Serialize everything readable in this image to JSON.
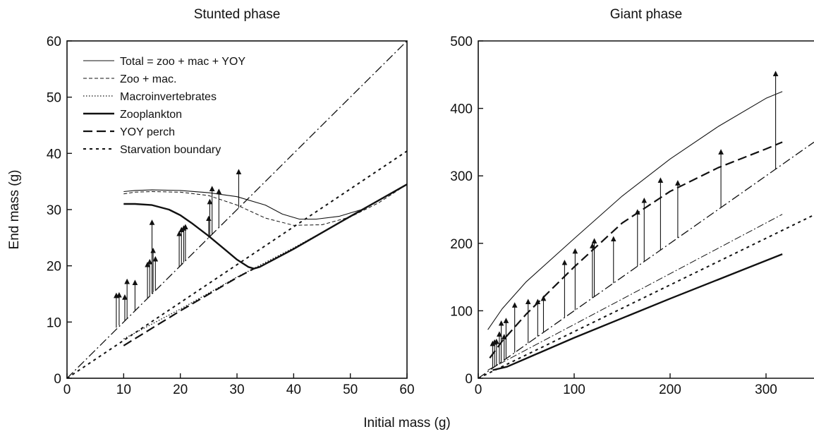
{
  "figure": {
    "shared_xlabel": "Initial mass (g)"
  },
  "chart_data": [
    {
      "type": "line",
      "title": "Stunted phase",
      "xlabel": "",
      "ylabel": "End mass (g)",
      "xlim": [
        0,
        60
      ],
      "ylim": [
        0,
        60
      ],
      "xticks": [
        0,
        10,
        20,
        30,
        40,
        50,
        60
      ],
      "yticks": [
        0,
        10,
        20,
        30,
        40,
        50,
        60
      ],
      "legend_position": "top-left",
      "series": [
        {
          "name": "Total = zoo + mac + YOY",
          "style": "thin-solid",
          "x": [
            10,
            12,
            15,
            20,
            25,
            30,
            35,
            38,
            41,
            44,
            48,
            52,
            56,
            60
          ],
          "y": [
            33.2,
            33.4,
            33.5,
            33.4,
            33.0,
            32.3,
            30.8,
            29.2,
            28.3,
            28.3,
            28.8,
            30.0,
            32.2,
            34.5
          ]
        },
        {
          "name": "Zoo + mac.",
          "style": "thin-dashed",
          "x": [
            10,
            12,
            15,
            20,
            25,
            30,
            35,
            40,
            45,
            50,
            55,
            60
          ],
          "y": [
            32.8,
            33.1,
            33.2,
            33.1,
            32.5,
            30.8,
            28.5,
            27.2,
            27.3,
            28.7,
            31.2,
            34.5
          ]
        },
        {
          "name": "Macroinvertebrates",
          "style": "dotted",
          "x": [
            10,
            20,
            30,
            40,
            50,
            60
          ],
          "y": [
            7.0,
            12.3,
            18.0,
            23.2,
            28.7,
            34.5
          ]
        },
        {
          "name": "Zooplankton",
          "style": "thick-solid",
          "x": [
            10,
            12,
            15,
            18,
            20,
            22,
            25,
            28,
            30,
            32,
            33,
            34,
            40,
            50,
            60
          ],
          "y": [
            31.0,
            31.0,
            30.8,
            30.0,
            29.0,
            27.6,
            25.3,
            22.8,
            21.1,
            19.8,
            19.5,
            19.8,
            23.0,
            28.8,
            34.5
          ]
        },
        {
          "name": "YOY perch",
          "style": "long-dashed",
          "x": [
            10,
            20,
            30,
            33
          ],
          "y": [
            5.8,
            12.0,
            17.9,
            19.5
          ]
        },
        {
          "name": "Starvation boundary",
          "style": "short-dashed",
          "x": [
            0,
            60
          ],
          "y": [
            0,
            40.4
          ]
        },
        {
          "name": "",
          "style": "dash-dot",
          "x": [
            0,
            60
          ],
          "y": [
            0,
            60
          ]
        }
      ],
      "arrows": [
        {
          "x": 8.7,
          "y0": 9.0,
          "y1": 15.5
        },
        {
          "x": 9.2,
          "y0": 9.4,
          "y1": 15.6
        },
        {
          "x": 10.2,
          "y0": 10.2,
          "y1": 15.2
        },
        {
          "x": 10.6,
          "y0": 10.6,
          "y1": 18.0
        },
        {
          "x": 12.0,
          "y0": 12.0,
          "y1": 17.8
        },
        {
          "x": 14.2,
          "y0": 14.3,
          "y1": 21.0
        },
        {
          "x": 14.6,
          "y0": 14.7,
          "y1": 21.5
        },
        {
          "x": 15.0,
          "y0": 15.0,
          "y1": 28.5
        },
        {
          "x": 15.2,
          "y0": 15.3,
          "y1": 23.5
        },
        {
          "x": 15.6,
          "y0": 15.7,
          "y1": 22.0
        },
        {
          "x": 19.8,
          "y0": 19.8,
          "y1": 26.5
        },
        {
          "x": 20.2,
          "y0": 20.2,
          "y1": 27.2
        },
        {
          "x": 20.6,
          "y0": 20.6,
          "y1": 27.5
        },
        {
          "x": 20.9,
          "y0": 20.9,
          "y1": 27.7
        },
        {
          "x": 25.0,
          "y0": 25.0,
          "y1": 29.2
        },
        {
          "x": 25.2,
          "y0": 25.2,
          "y1": 32.2
        },
        {
          "x": 25.6,
          "y0": 25.6,
          "y1": 34.5
        },
        {
          "x": 26.8,
          "y0": 26.8,
          "y1": 34.0
        },
        {
          "x": 30.3,
          "y0": 30.3,
          "y1": 37.5
        }
      ]
    },
    {
      "type": "line",
      "title": "Giant phase",
      "xlabel": "",
      "ylabel": "",
      "xlim": [
        0,
        350
      ],
      "ylim": [
        0,
        500
      ],
      "xticks": [
        0,
        100,
        200,
        300
      ],
      "yticks": [
        0,
        100,
        200,
        300,
        400,
        500
      ],
      "series": [
        {
          "name": "Total = zoo + mac + YOY",
          "style": "thin-solid",
          "x": [
            10,
            25,
            50,
            100,
            150,
            200,
            250,
            300,
            317
          ],
          "y": [
            72,
            103,
            143,
            207,
            270,
            325,
            373,
            415,
            425
          ]
        },
        {
          "name": "YOY perch",
          "style": "long-dashed",
          "x": [
            12,
            25,
            50,
            100,
            150,
            200,
            250,
            300,
            317
          ],
          "y": [
            30,
            55,
            95,
            165,
            230,
            277,
            312,
            340,
            350
          ]
        },
        {
          "name": "",
          "style": "dash-dot",
          "x": [
            0,
            350
          ],
          "y": [
            0,
            350
          ]
        },
        {
          "name": "",
          "style": "thin-dash-dot",
          "x": [
            10,
            317
          ],
          "y": [
            12,
            243
          ]
        },
        {
          "name": "Starvation boundary",
          "style": "short-dashed",
          "x": [
            0,
            350
          ],
          "y": [
            0,
            242
          ]
        },
        {
          "name": "Zooplankton",
          "style": "thick-solid",
          "x": [
            15,
            30,
            100,
            200,
            317
          ],
          "y": [
            12,
            17,
            60,
            118,
            184
          ]
        }
      ],
      "arrows": [
        {
          "x": 15,
          "y0": 15,
          "y1": 58
        },
        {
          "x": 17,
          "y0": 17,
          "y1": 60
        },
        {
          "x": 19,
          "y0": 19,
          "y1": 61
        },
        {
          "x": 22,
          "y0": 22,
          "y1": 72
        },
        {
          "x": 24,
          "y0": 24,
          "y1": 88
        },
        {
          "x": 27,
          "y0": 27,
          "y1": 68
        },
        {
          "x": 29,
          "y0": 29,
          "y1": 92
        },
        {
          "x": 38,
          "y0": 38,
          "y1": 115
        },
        {
          "x": 52,
          "y0": 52,
          "y1": 120
        },
        {
          "x": 62,
          "y0": 62,
          "y1": 120
        },
        {
          "x": 68,
          "y0": 68,
          "y1": 125
        },
        {
          "x": 90,
          "y0": 90,
          "y1": 178
        },
        {
          "x": 101,
          "y0": 101,
          "y1": 195
        },
        {
          "x": 119,
          "y0": 119,
          "y1": 203
        },
        {
          "x": 121,
          "y0": 121,
          "y1": 210
        },
        {
          "x": 141,
          "y0": 141,
          "y1": 213
        },
        {
          "x": 166,
          "y0": 166,
          "y1": 253
        },
        {
          "x": 173,
          "y0": 173,
          "y1": 270
        },
        {
          "x": 190,
          "y0": 190,
          "y1": 300
        },
        {
          "x": 208,
          "y0": 208,
          "y1": 296
        },
        {
          "x": 253,
          "y0": 253,
          "y1": 342
        },
        {
          "x": 310,
          "y0": 310,
          "y1": 458
        }
      ]
    }
  ]
}
